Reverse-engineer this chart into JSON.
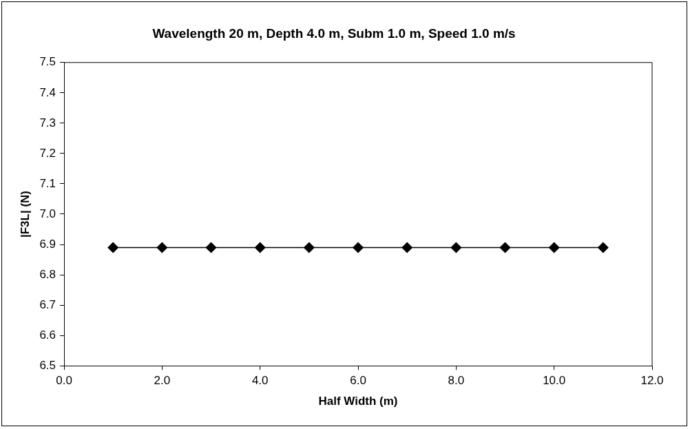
{
  "chart_data": {
    "type": "line",
    "title": "Wavelength 20 m, Depth 4.0 m, Subm 1.0 m, Speed 1.0 m/s",
    "xlabel": "Half Width (m)",
    "ylabel": "|F3L| (N)",
    "x": [
      1,
      2,
      3,
      4,
      5,
      6,
      7,
      8,
      9,
      10,
      11
    ],
    "series": [
      {
        "color": "#000000",
        "values": [
          6.89,
          6.89,
          6.89,
          6.89,
          6.89,
          6.89,
          6.89,
          6.89,
          6.89,
          6.89,
          6.89
        ]
      }
    ],
    "xlim": [
      0,
      12
    ],
    "xticks": [
      {
        "value": 0,
        "label": "0.0"
      },
      {
        "value": 2,
        "label": "2.0"
      },
      {
        "value": 4,
        "label": "4.0"
      },
      {
        "value": 6,
        "label": "6.0"
      },
      {
        "value": 8,
        "label": "8.0"
      },
      {
        "value": 10,
        "label": "10.0"
      },
      {
        "value": 12,
        "label": "12.0"
      }
    ],
    "ylim": [
      6.5,
      7.5
    ],
    "yticks": [
      6.5,
      6.6,
      6.7,
      6.8,
      6.9,
      {
        "value": 7,
        "label": "7.0"
      },
      7.1,
      7.2,
      7.3,
      7.4,
      7.5
    ],
    "grid": false,
    "legend": false,
    "marker": "diamond",
    "line_style": "solid"
  }
}
